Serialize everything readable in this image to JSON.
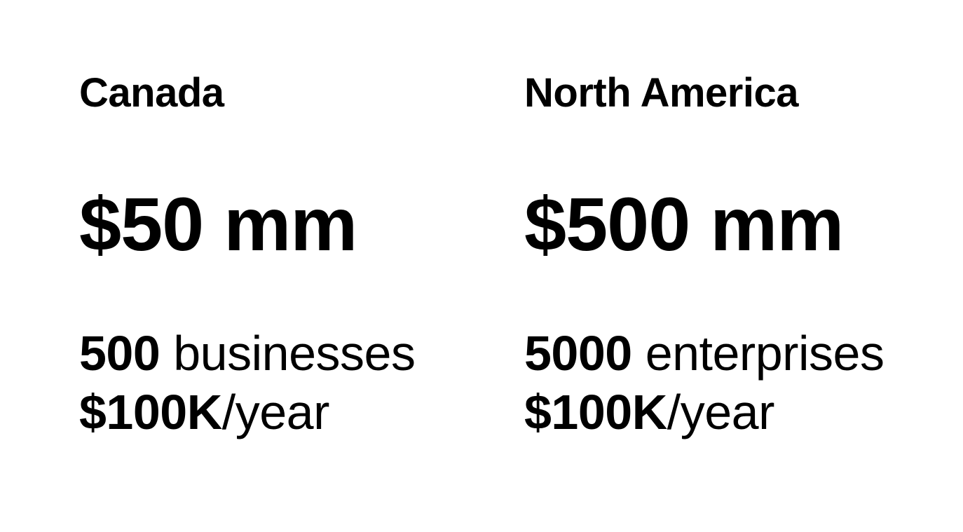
{
  "page": {
    "background_color": "#ffffff",
    "text_color": "#000000"
  },
  "columns": [
    {
      "region": "Canada",
      "market_value": "$50 mm",
      "count": "500",
      "count_label": "businesses",
      "revenue": "$100K",
      "revenue_suffix": "/year"
    },
    {
      "region": "North America",
      "market_value": "$500 mm",
      "count": "5000",
      "count_label": "enterprises",
      "revenue": "$100K",
      "revenue_suffix": "/year"
    }
  ]
}
